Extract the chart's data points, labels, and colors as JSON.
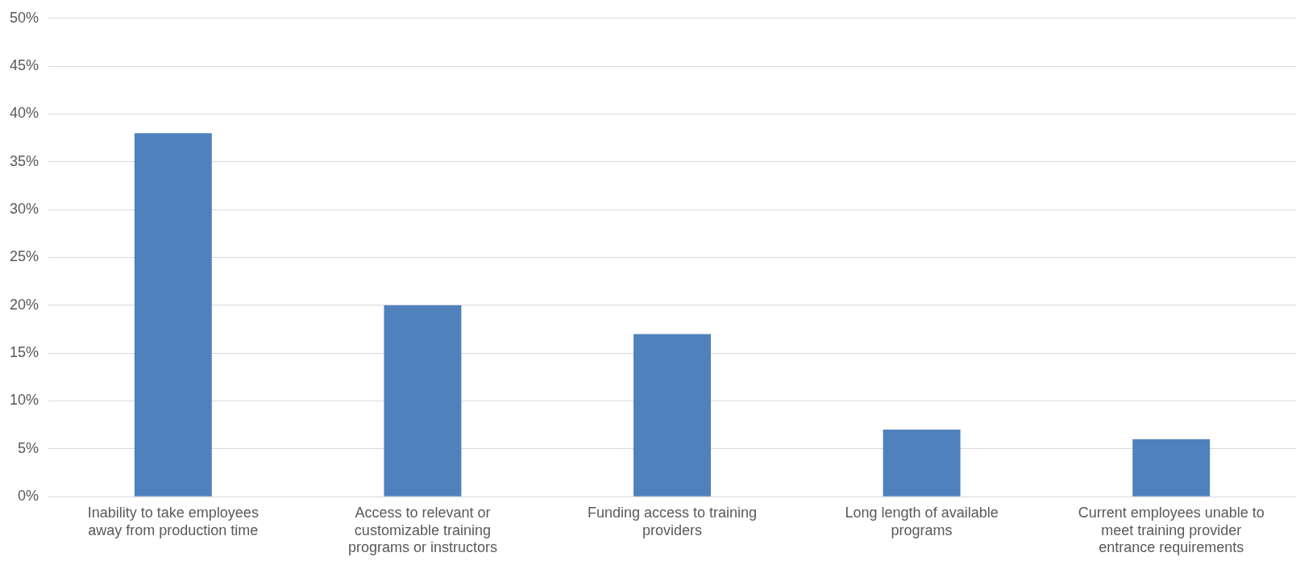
{
  "chart_data": {
    "type": "bar",
    "categories": [
      "Inability to take employees away from production time",
      "Access to relevant or customizable training programs or instructors",
      "Funding access to training providers",
      "Long length of available programs",
      "Current employees unable to meet training provider entrance requirements"
    ],
    "values": [
      38,
      20,
      17,
      7,
      6
    ],
    "color": "#4f81bd",
    "ylim": [
      0,
      50
    ],
    "yticks": [
      {
        "value": 0,
        "label": "0%"
      },
      {
        "value": 5,
        "label": "5%"
      },
      {
        "value": 10,
        "label": "10%"
      },
      {
        "value": 15,
        "label": "15%"
      },
      {
        "value": 20,
        "label": "20%"
      },
      {
        "value": 25,
        "label": "25%"
      },
      {
        "value": 30,
        "label": "30%"
      },
      {
        "value": 35,
        "label": "35%"
      },
      {
        "value": 40,
        "label": "40%"
      },
      {
        "value": 45,
        "label": "45%"
      },
      {
        "value": 50,
        "label": "50%"
      }
    ],
    "grid": "y",
    "legend": false
  }
}
